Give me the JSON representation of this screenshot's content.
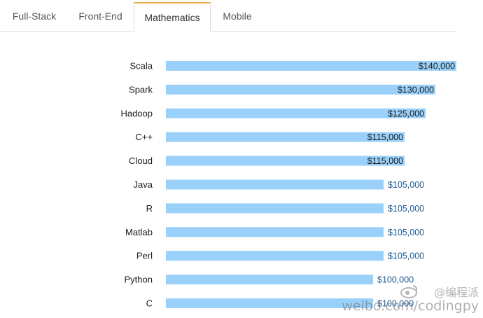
{
  "tabs": [
    {
      "label": "Full-Stack",
      "active": false
    },
    {
      "label": "Front-End",
      "active": false
    },
    {
      "label": "Mathematics",
      "active": true
    },
    {
      "label": "Mobile",
      "active": false
    }
  ],
  "chart_data": {
    "type": "bar",
    "orientation": "horizontal",
    "title": "",
    "xlabel": "",
    "ylabel": "",
    "categories": [
      "Scala",
      "Spark",
      "Hadoop",
      "C++",
      "Cloud",
      "Java",
      "R",
      "Matlab",
      "Perl",
      "Python",
      "C"
    ],
    "values": [
      140000,
      130000,
      125000,
      115000,
      115000,
      105000,
      105000,
      105000,
      105000,
      100000,
      100000
    ],
    "value_labels": [
      "$140,000",
      "$130,000",
      "$125,000",
      "$115,000",
      "$115,000",
      "$105,000",
      "$105,000",
      "$105,000",
      "$105,000",
      "$100,000",
      "$100,000"
    ],
    "xlim": [
      0,
      140000
    ],
    "grid": false,
    "bar_color": "#99d1fa",
    "label_color_inside": "#1a1a1a",
    "label_color_outside": "#1a5a96"
  },
  "watermark": {
    "line1": "@编程派",
    "line2": "weibo.com/codingpy"
  }
}
